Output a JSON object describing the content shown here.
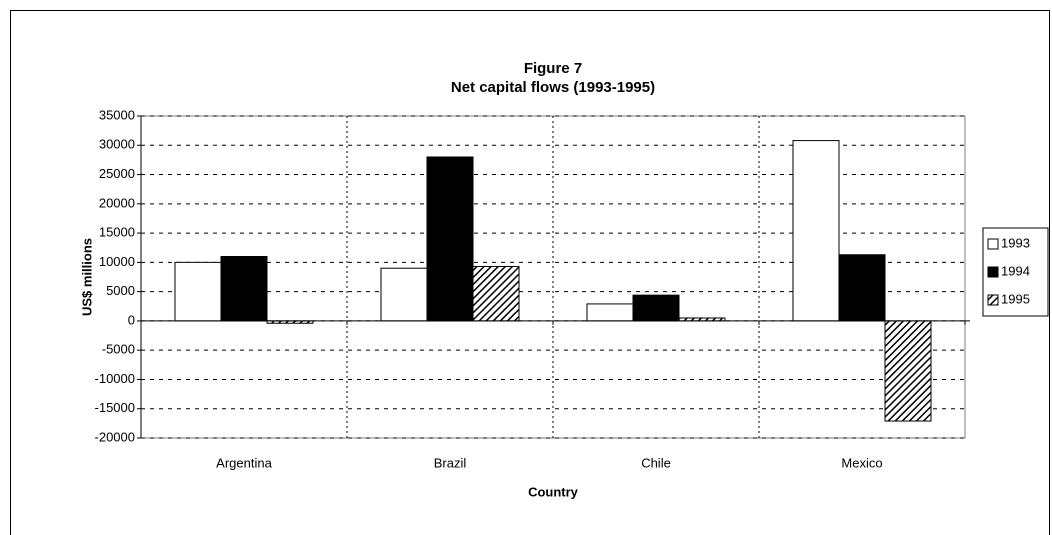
{
  "chart_data": {
    "type": "bar",
    "title": "Figure 7",
    "subtitle": "Net capital flows (1993-1995)",
    "x_label": "Country",
    "y_label": "US$ millions",
    "categories": [
      "Argentina",
      "Brazil",
      "Chile",
      "Mexico"
    ],
    "series": [
      {
        "name": "1993",
        "color": "#ffffff",
        "values": [
          10000,
          9000,
          2900,
          30800
        ]
      },
      {
        "name": "1994",
        "color": "#000000",
        "values": [
          11000,
          28000,
          4400,
          11300
        ]
      },
      {
        "name": "1995",
        "color": "#000000",
        "pattern": "diagonal-hatch",
        "values": [
          -400,
          9300,
          500,
          -17100
        ]
      }
    ],
    "ylim": [
      -20000,
      35000
    ],
    "yticks": [
      -20000,
      -15000,
      -10000,
      -5000,
      0,
      5000,
      10000,
      15000,
      20000,
      25000,
      30000,
      35000
    ],
    "grid": true,
    "legend": "right"
  }
}
